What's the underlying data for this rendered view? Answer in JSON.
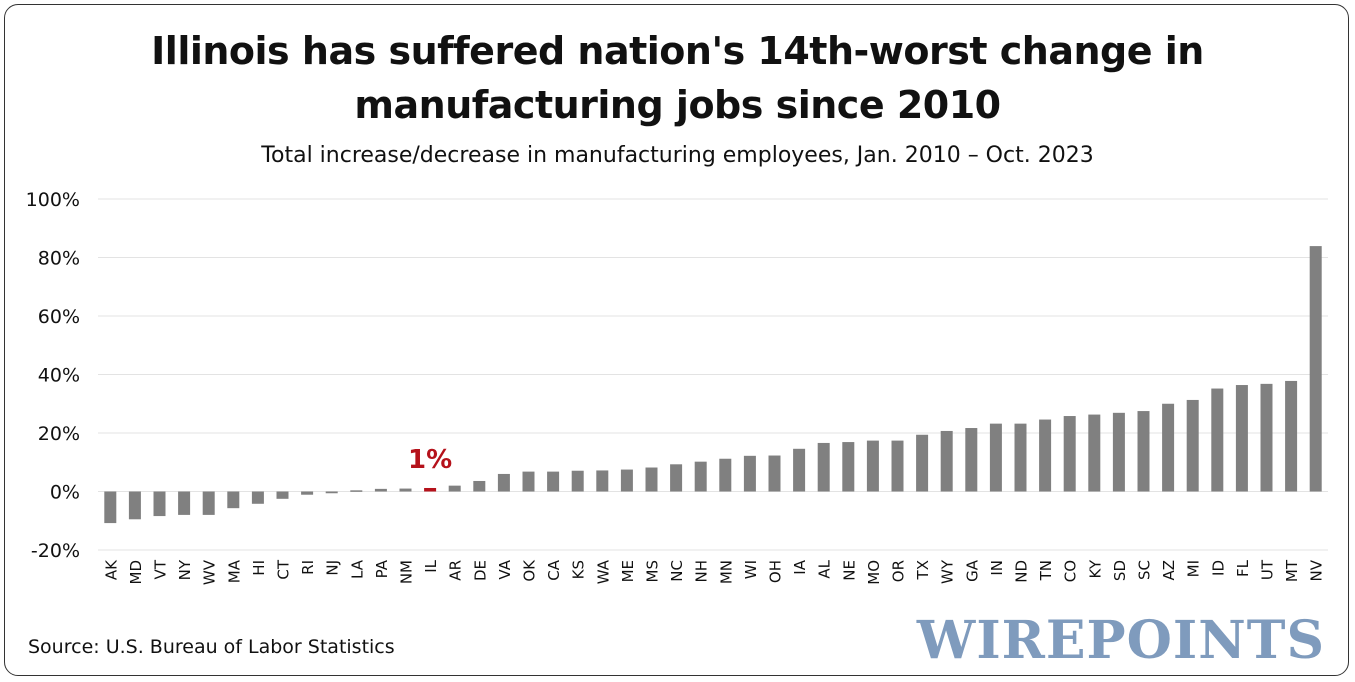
{
  "chart_data": {
    "type": "bar",
    "title_line1": "Illinois has suffered nation's 14th-worst change in",
    "title_line2": "manufacturing jobs since 2010",
    "subtitle": "Total increase/decrease in manufacturing employees, Jan. 2010 – Oct. 2023",
    "xlabel": "",
    "ylabel": "",
    "ylim": [
      -20,
      100
    ],
    "yticks": [
      -20,
      0,
      20,
      40,
      60,
      80,
      100
    ],
    "ytick_labels": [
      "-20%",
      "0%",
      "20%",
      "40%",
      "60%",
      "80%",
      "100%"
    ],
    "grid": true,
    "categories": [
      "AK",
      "MD",
      "VT",
      "NY",
      "WV",
      "MA",
      "HI",
      "CT",
      "RI",
      "NJ",
      "LA",
      "PA",
      "NM",
      "IL",
      "AR",
      "DE",
      "VA",
      "OK",
      "CA",
      "KS",
      "WA",
      "ME",
      "MS",
      "NC",
      "NH",
      "MN",
      "WI",
      "OH",
      "IA",
      "AL",
      "NE",
      "MO",
      "OR",
      "TX",
      "WY",
      "GA",
      "IN",
      "ND",
      "TN",
      "CO",
      "KY",
      "SD",
      "SC",
      "AZ",
      "MI",
      "ID",
      "FL",
      "UT",
      "MT",
      "NV"
    ],
    "values": [
      -10.8,
      -9.5,
      -8.4,
      -8.0,
      -8.0,
      -5.7,
      -4.2,
      -2.5,
      -1.1,
      -0.6,
      0.4,
      0.9,
      1.0,
      1.2,
      2.0,
      3.6,
      6.0,
      6.8,
      6.8,
      7.1,
      7.2,
      7.5,
      8.2,
      9.3,
      10.2,
      11.2,
      12.2,
      12.3,
      14.6,
      16.6,
      16.9,
      17.4,
      17.4,
      19.4,
      20.7,
      21.7,
      23.2,
      23.2,
      24.6,
      25.8,
      26.3,
      26.9,
      27.5,
      30.0,
      31.3,
      35.2,
      36.4,
      36.8,
      37.8,
      83.9
    ],
    "bar_color": "#808080",
    "highlight_category": "IL",
    "highlight_color": "#b5121b",
    "highlight_label": "1%"
  },
  "footer": {
    "source": "Source: U.S. Bureau of Labor Statistics",
    "brand": "WIREPOINTS"
  }
}
